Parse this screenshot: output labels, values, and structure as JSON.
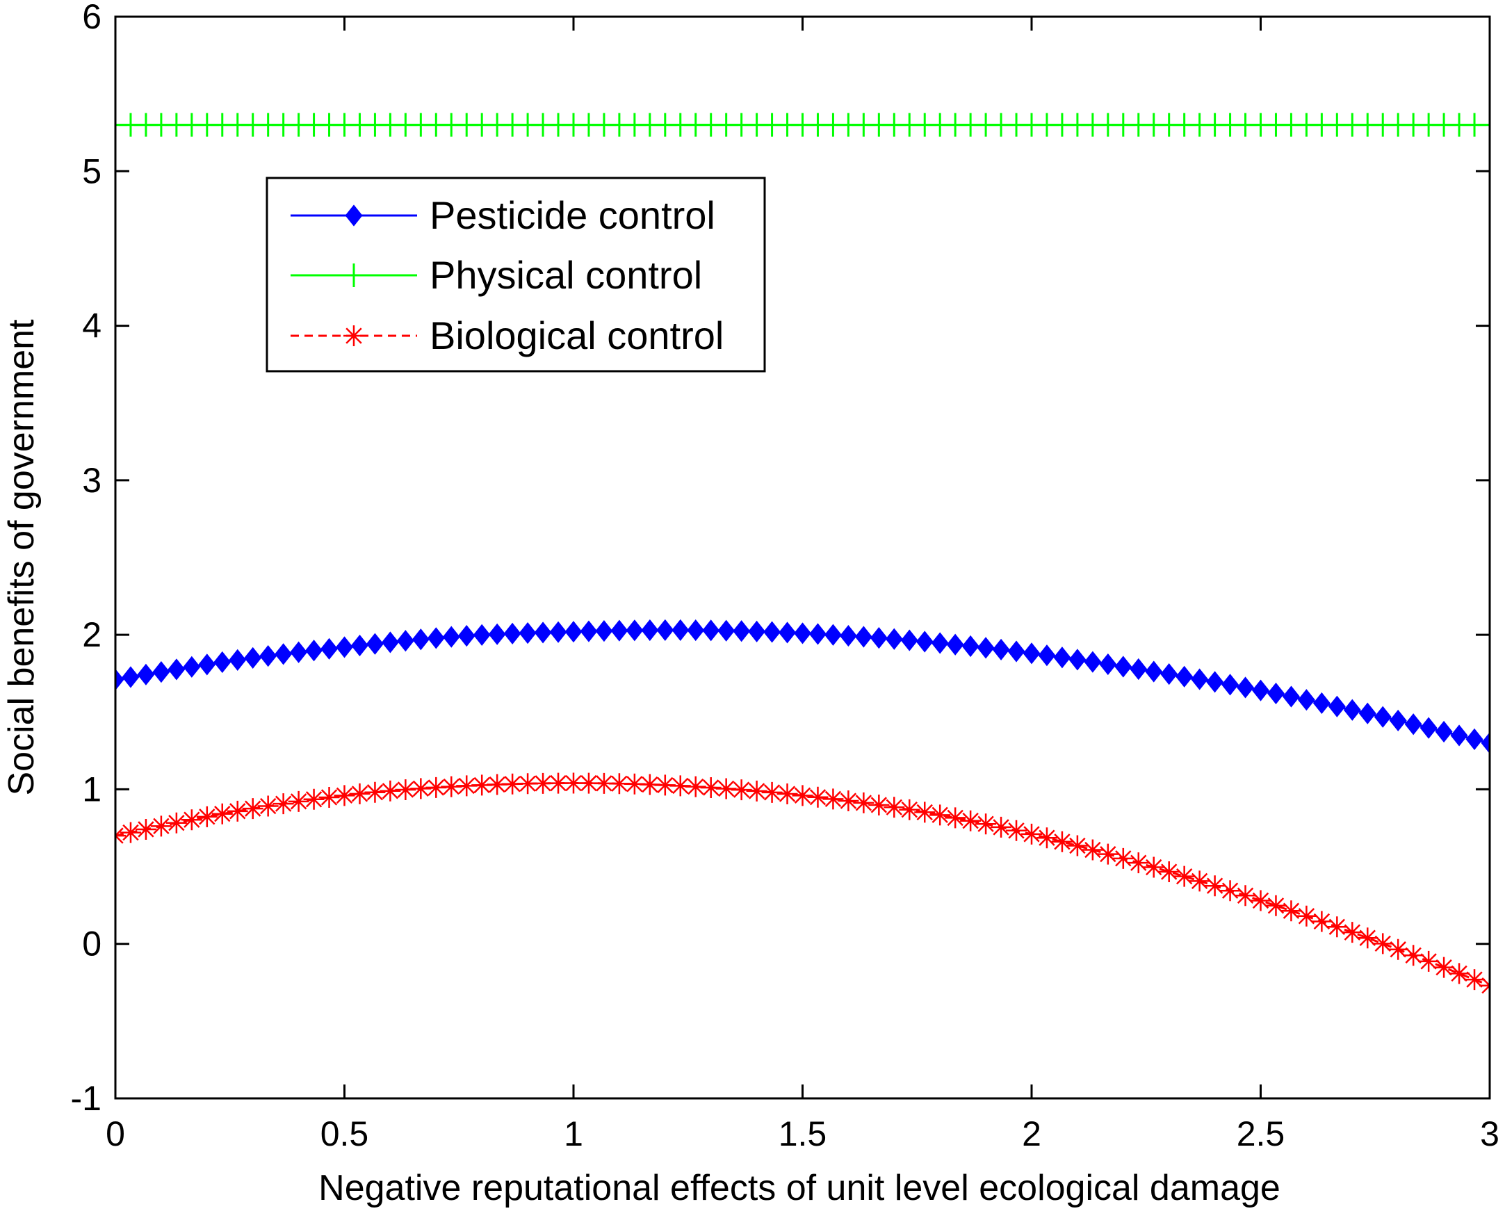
{
  "chart_data": {
    "type": "line",
    "title": "",
    "xlabel": "Negative reputational effects of unit level ecological damage",
    "ylabel": "Social benefits of government",
    "xlim": [
      0,
      3
    ],
    "ylim": [
      -1,
      6
    ],
    "xticks": [
      {
        "value": 0,
        "label": "0"
      },
      {
        "value": 0.5,
        "label": "0.5"
      },
      {
        "value": 1,
        "label": "1"
      },
      {
        "value": 1.5,
        "label": "1.5"
      },
      {
        "value": 2,
        "label": "2"
      },
      {
        "value": 2.5,
        "label": "2.5"
      },
      {
        "value": 3,
        "label": "3"
      }
    ],
    "yticks": [
      {
        "value": -1,
        "label": "-1"
      },
      {
        "value": 0,
        "label": "0"
      },
      {
        "value": 1,
        "label": "1"
      },
      {
        "value": 2,
        "label": "2"
      },
      {
        "value": 3,
        "label": "3"
      },
      {
        "value": 4,
        "label": "4"
      },
      {
        "value": 5,
        "label": "5"
      },
      {
        "value": 6,
        "label": "6"
      }
    ],
    "grid": false,
    "legend_position": "top-left",
    "n_markers": 91,
    "series": [
      {
        "name": "Pesticide control",
        "color": "#0000ff",
        "line_style": "solid",
        "marker": "diamond",
        "x": [
          0,
          0.25,
          0.5,
          0.75,
          1.0,
          1.25,
          1.5,
          1.75,
          2.0,
          2.25,
          2.5,
          2.75,
          3.0
        ],
        "y": [
          1.71,
          1.83,
          1.92,
          1.99,
          2.02,
          2.03,
          2.01,
          1.96,
          1.88,
          1.77,
          1.64,
          1.48,
          1.3
        ]
      },
      {
        "name": "Physical control",
        "color": "#00ff00",
        "line_style": "solid",
        "marker": "plus",
        "x": [
          0,
          3.0
        ],
        "y": [
          5.3,
          5.3
        ]
      },
      {
        "name": "Biological control",
        "color": "#ff0000",
        "line_style": "dashed",
        "marker": "asterisk",
        "x": [
          0,
          0.25,
          0.5,
          0.75,
          1.0,
          1.25,
          1.5,
          1.75,
          2.0,
          2.25,
          2.5,
          2.75,
          3.0
        ],
        "y": [
          0.7,
          0.85,
          0.96,
          1.02,
          1.04,
          1.02,
          0.96,
          0.86,
          0.71,
          0.51,
          0.28,
          0.02,
          -0.27
        ]
      }
    ]
  }
}
